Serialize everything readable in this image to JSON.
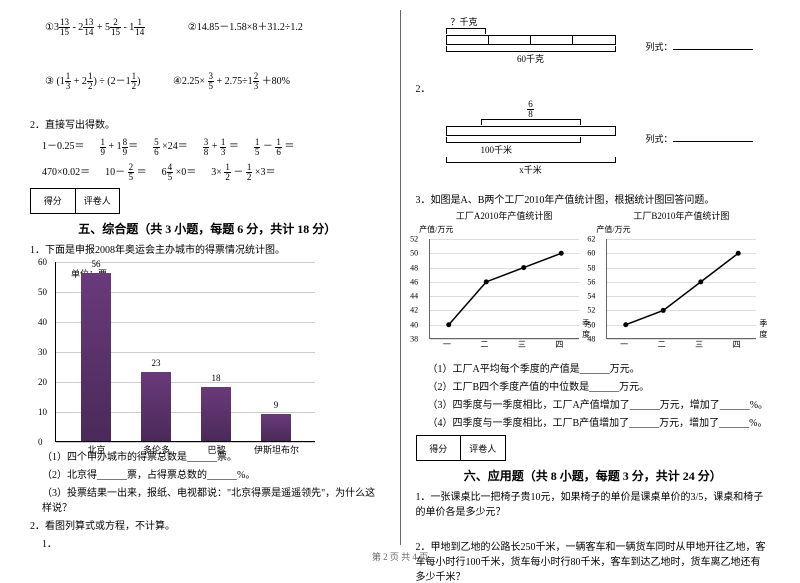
{
  "left": {
    "math1": "①3(13/15) - 2(13/14) + 5(2/15) - 1(1/14)",
    "math2": "②14.85－1.58×8＋31.2÷1.2",
    "math3": "③ (1(1/3) + 2(1/2)) ÷ (2－1(1/2))",
    "math4": "④2.25× 3/5 + 2.75÷1(2/3) ＋80%",
    "q2": "2．直接写出得数。",
    "calc_row1": [
      "1－0.25＝",
      "1/9 + 1(8/9)＝",
      "5/6 ×24＝",
      "3/8 + 1/3 ＝",
      "1/5 － 1/6 ＝"
    ],
    "calc_row2": [
      "470×0.02＝",
      "10－ 2/5 ＝",
      "6(4/5) ×0＝",
      "3× 1/2 － 1/2 ×3＝",
      ""
    ],
    "score_label1": "得分",
    "score_label2": "评卷人",
    "section5": "五、综合题（共 3 小题，每题 6 分，共计 18 分）",
    "q5_1": "1．下面是申报2008年奥运会主办城市的得票情况统计图。",
    "chart": {
      "unit": "单位：票",
      "y_ticks": [
        0,
        10,
        20,
        30,
        40,
        50,
        60
      ],
      "bars": [
        {
          "label": "北京",
          "value": 56,
          "x": 25
        },
        {
          "label": "多伦多",
          "value": 23,
          "x": 85
        },
        {
          "label": "巴黎",
          "value": 18,
          "x": 145
        },
        {
          "label": "伊斯坦布尔",
          "value": 9,
          "x": 205
        }
      ],
      "max": 60,
      "height": 180,
      "bar_color": "#5a3a6a"
    },
    "sub1": "（1）四个申办城市的得票总数是______票。",
    "sub2": "（2）北京得______票，占得票总数的______%。",
    "sub3": "（3）投票结果一出来，报纸、电视都说：\"北京得票是遥遥领先\"，为什么这样说？",
    "q5_2": "2．看图列算式或方程，不计算。",
    "q5_2_1": "1．"
  },
  "right": {
    "diagram1_label": "？千克",
    "diagram1_total": "60千克",
    "diagram1_formula": "列式：",
    "q2": "2．",
    "diagram2_frac": "6/8",
    "diagram2_total": "100千米",
    "diagram2_x": "x千米",
    "diagram2_formula": "列式：",
    "q3": "3．如图是A、B两个工厂2010年产值统计图，根据统计图回答问题。",
    "chartA": {
      "title": "工厂A2010年产值统计图",
      "ylabel": "产值/万元",
      "y_ticks": [
        38,
        40,
        42,
        44,
        46,
        48,
        50,
        52
      ],
      "x_labels": [
        "一",
        "二",
        "三",
        "四"
      ],
      "xlabel_end": "季度",
      "points": [
        40,
        46,
        48,
        50
      ]
    },
    "chartB": {
      "title": "工厂B2010年产值统计图",
      "ylabel": "产值/万元",
      "y_ticks": [
        48,
        50,
        52,
        54,
        56,
        58,
        60,
        62
      ],
      "x_labels": [
        "一",
        "二",
        "三",
        "四"
      ],
      "xlabel_end": "季度",
      "points": [
        50,
        52,
        56,
        60
      ]
    },
    "sub1": "（1）工厂A平均每个季度的产值是______万元。",
    "sub2": "（2）工厂B四个季度产值的中位数是______万元。",
    "sub3": "（3）四季度与一季度相比，工厂A产值增加了______万元，增加了______%。",
    "sub4": "（4）四季度与一季度相比，工厂B产值增加了______万元，增加了______%。",
    "score_label1": "得分",
    "score_label2": "评卷人",
    "section6": "六、应用题（共 8 小题，每题 3 分，共计 24 分）",
    "q6_1": "1．一张课桌比一把椅子贵10元，如果椅子的单价是课桌单价的3/5，课桌和椅子的单价各是多少元？",
    "q6_2": "2．甲地到乙地的公路长250千米，一辆客车和一辆货车同时从甲地开往乙地，客车每小时行100千米，货车每小时行80千米，客车到达乙地时，货车离乙地还有多少千米？"
  },
  "footer": "第 2 页 共 4 页"
}
